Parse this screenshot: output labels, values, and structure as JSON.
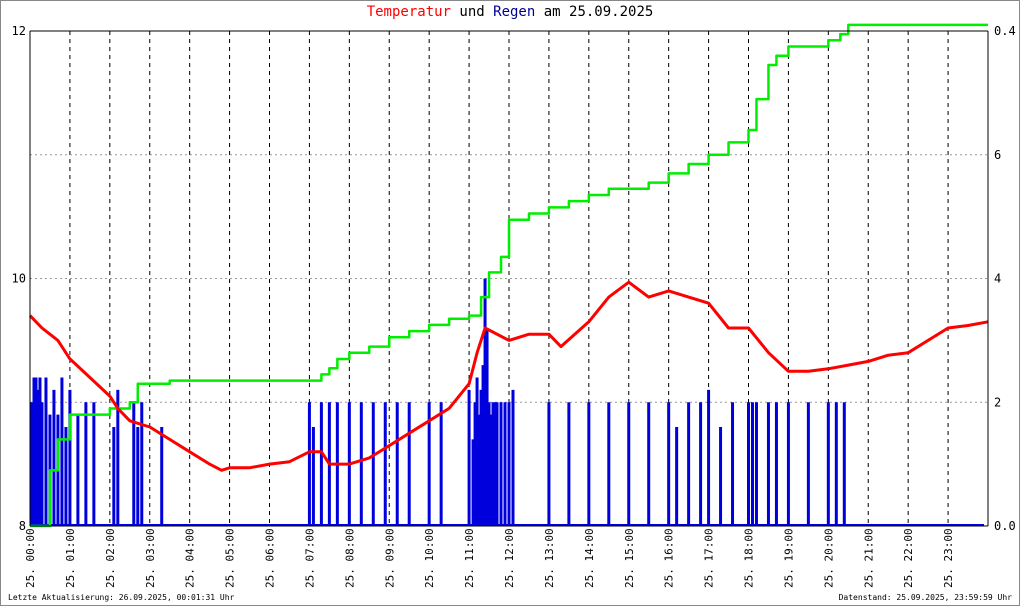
{
  "title": {
    "part1": "Temperatur",
    "part2": " und ",
    "part3": "Regen",
    "part4": " am 25.09.2025"
  },
  "footer": {
    "left": "Letzte Aktualisierung: 26.09.2025, 00:01:31 Uhr",
    "right": "Datenstand: 25.09.2025, 23:59:59 Uhr"
  },
  "colors": {
    "temperature": "#ff0000",
    "rain_rate": "#0000dd",
    "rain_sum": "#00ee00",
    "axis": "#000000",
    "grid": "#000000"
  },
  "chart_data": {
    "type": "line",
    "x_tick_labels": [
      "25. 00:00",
      "25. 01:00",
      "25. 02:00",
      "25. 03:00",
      "25. 04:00",
      "25. 05:00",
      "25. 06:00",
      "25. 07:00",
      "25. 08:00",
      "25. 09:00",
      "25. 10:00",
      "25. 11:00",
      "25. 12:00",
      "25. 13:00",
      "25. 14:00",
      "25. 15:00",
      "25. 16:00",
      "25. 17:00",
      "25. 18:00",
      "25. 19:00",
      "25. 20:00",
      "25. 21:00",
      "25. 22:00",
      "25. 23:00"
    ],
    "xlim_hours": [
      0,
      24
    ],
    "left_axis": {
      "ylim": [
        8,
        12
      ],
      "ticks": [
        "8",
        "10",
        "12"
      ]
    },
    "right_axis_inner": {
      "ylim": [
        0,
        0.4
      ],
      "ticks": [
        "0.0",
        "2",
        "0.4"
      ]
    },
    "right_axis_outer": {
      "ticks": [
        "0.0",
        "2",
        "4",
        "6",
        "0.4"
      ]
    },
    "grid": true,
    "series": [
      {
        "axis": "left",
        "x": [
          0,
          0.3,
          0.7,
          1,
          1.5,
          2,
          2.2,
          2.5,
          3,
          3.5,
          4,
          4.5,
          4.8,
          5,
          5.5,
          6,
          6.5,
          7,
          7.3,
          7.5,
          8,
          8.5,
          9,
          9.5,
          10,
          10.5,
          11,
          11.2,
          11.4,
          12,
          12.5,
          13,
          13.3,
          14,
          14.5,
          15,
          15.5,
          16,
          16.5,
          17,
          17.5,
          18,
          18.5,
          19,
          19.5,
          20,
          20.5,
          21,
          21.5,
          22,
          22.5,
          23,
          23.5,
          24
        ],
        "y": [
          9.7,
          9.6,
          9.5,
          9.35,
          9.2,
          9.05,
          8.95,
          8.85,
          8.8,
          8.7,
          8.6,
          8.5,
          8.45,
          8.47,
          8.47,
          8.5,
          8.52,
          8.6,
          8.6,
          8.5,
          8.5,
          8.55,
          8.65,
          8.75,
          8.85,
          8.95,
          9.15,
          9.4,
          9.6,
          9.5,
          9.55,
          9.55,
          9.45,
          9.65,
          9.85,
          9.97,
          9.85,
          9.9,
          9.85,
          9.8,
          9.6,
          9.6,
          9.4,
          9.25,
          9.25,
          9.27,
          9.3,
          9.33,
          9.38,
          9.4,
          9.5,
          9.6,
          9.62,
          9.65
        ]
      },
      {
        "axis": "right_outer",
        "x": [
          0,
          0.5,
          0.7,
          1,
          1.5,
          2,
          2.5,
          2.7,
          3,
          3.5,
          4,
          5,
          6,
          7,
          7.3,
          7.5,
          7.7,
          8,
          8.5,
          9,
          9.5,
          10,
          10.5,
          11,
          11.3,
          11.5,
          11.8,
          12,
          12.5,
          13,
          13.5,
          14,
          14.5,
          15,
          15.5,
          16,
          16.5,
          17,
          17.5,
          18,
          18.2,
          18.5,
          18.7,
          19,
          19.5,
          20,
          20.3,
          20.5,
          21,
          22,
          23,
          24
        ],
        "y": [
          0,
          0.9,
          1.4,
          1.8,
          1.8,
          1.9,
          2.0,
          2.3,
          2.3,
          2.35,
          2.35,
          2.35,
          2.35,
          2.35,
          2.45,
          2.55,
          2.7,
          2.8,
          2.9,
          3.05,
          3.15,
          3.25,
          3.35,
          3.4,
          3.7,
          4.1,
          4.35,
          4.95,
          5.05,
          5.15,
          5.25,
          5.35,
          5.45,
          5.45,
          5.55,
          5.7,
          5.85,
          6,
          6.2,
          6.4,
          6.9,
          7.45,
          7.6,
          7.75,
          7.75,
          7.85,
          7.95,
          8.1,
          8.1,
          8.1,
          8.1,
          8.1
        ]
      },
      {
        "axis": "right_inner",
        "x": [
          0.05,
          0.1,
          0.15,
          0.2,
          0.25,
          0.3,
          0.4,
          0.5,
          0.6,
          0.7,
          0.8,
          0.9,
          1.0,
          1.2,
          1.4,
          1.6,
          2.1,
          2.2,
          2.6,
          2.7,
          2.8,
          3.3,
          7.0,
          7.1,
          7.3,
          7.5,
          7.7,
          8.0,
          8.3,
          8.6,
          8.9,
          9.2,
          9.5,
          10.0,
          10.3,
          11.0,
          11.1,
          11.15,
          11.2,
          11.25,
          11.3,
          11.35,
          11.4,
          11.45,
          11.5,
          11.55,
          11.6,
          11.65,
          11.7,
          11.8,
          11.9,
          12.0,
          12.1,
          13.0,
          13.5,
          14.0,
          14.5,
          15.0,
          15.5,
          16.0,
          16.2,
          16.5,
          16.8,
          17.0,
          17.3,
          17.6,
          18.0,
          18.1,
          18.2,
          18.5,
          18.7,
          19.0,
          19.5,
          20.0,
          20.2,
          20.4
        ],
        "y": [
          0.1,
          0.12,
          0.12,
          0.11,
          0.12,
          0.1,
          0.12,
          0.09,
          0.11,
          0.09,
          0.12,
          0.08,
          0.11,
          0.09,
          0.1,
          0.1,
          0.08,
          0.11,
          0.1,
          0.08,
          0.1,
          0.08,
          0.1,
          0.08,
          0.1,
          0.1,
          0.1,
          0.1,
          0.1,
          0.1,
          0.1,
          0.1,
          0.1,
          0.1,
          0.1,
          0.11,
          0.07,
          0.1,
          0.12,
          0.09,
          0.11,
          0.13,
          0.2,
          0.16,
          0.1,
          0.09,
          0.1,
          0.1,
          0.1,
          0.1,
          0.1,
          0.1,
          0.11,
          0.1,
          0.1,
          0.1,
          0.1,
          0.1,
          0.1,
          0.1,
          0.08,
          0.1,
          0.1,
          0.11,
          0.08,
          0.1,
          0.1,
          0.1,
          0.1,
          0.1,
          0.1,
          0.1,
          0.1,
          0.1,
          0.1,
          0.1
        ]
      }
    ]
  }
}
